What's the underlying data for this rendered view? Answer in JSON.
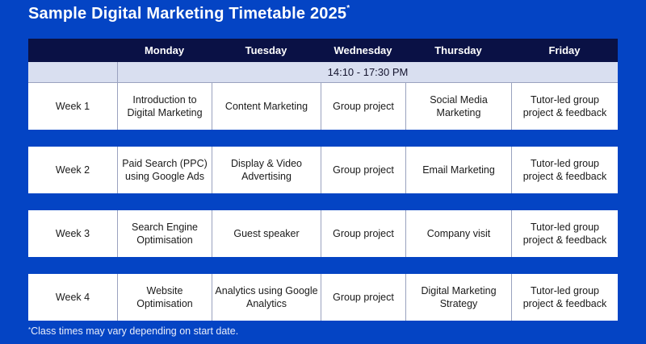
{
  "page": {
    "title": "Sample Digital Marketing Timetable 2025",
    "title_superscript": "*",
    "footnote_marker": "*",
    "footnote_text": "Class times may vary depending on start date."
  },
  "colors": {
    "background_blue": "#0444c4",
    "header_navy": "#0a1145",
    "time_row_lavender": "#d9dff0",
    "row_white": "#ffffff",
    "cell_border": "#9aa2bf",
    "cell_text": "#1a1a1a",
    "title_text": "#ffffff"
  },
  "timetable": {
    "columns": [
      "",
      "Monday",
      "Tuesday",
      "Wednesday",
      "Thursday",
      "Friday"
    ],
    "time_range": "14:10 - 17:30 PM",
    "weeks": [
      {
        "label": "Week 1",
        "cells": [
          "Introduction to Digital Marketing",
          "Content Marketing",
          "Group project",
          "Social Media Marketing",
          "Tutor-led group project & feedback"
        ]
      },
      {
        "label": "Week 2",
        "cells": [
          "Paid Search (PPC) using Google Ads",
          "Display & Video Advertising",
          "Group project",
          "Email Marketing",
          "Tutor-led group project & feedback"
        ]
      },
      {
        "label": "Week 3",
        "cells": [
          "Search Engine Optimisation",
          "Guest speaker",
          "Group project",
          "Company visit",
          "Tutor-led group project & feedback"
        ]
      },
      {
        "label": "Week 4",
        "cells": [
          "Website Optimisation",
          "Analytics using Google Analytics",
          "Group project",
          "Digital Marketing Strategy",
          "Tutor-led group project & feedback"
        ]
      }
    ]
  },
  "chart_data": {
    "type": "table",
    "title": "Sample Digital Marketing Timetable 2025*",
    "columns": [
      "",
      "Monday",
      "Tuesday",
      "Wednesday",
      "Thursday",
      "Friday"
    ],
    "time_range_row": "14:10 - 17:30 PM",
    "rows": [
      [
        "Week 1",
        "Introduction to Digital Marketing",
        "Content Marketing",
        "Group project",
        "Social Media Marketing",
        "Tutor-led group project & feedback"
      ],
      [
        "Week 2",
        "Paid Search (PPC) using Google Ads",
        "Display & Video Advertising",
        "Group project",
        "Email Marketing",
        "Tutor-led group project & feedback"
      ],
      [
        "Week 3",
        "Search Engine Optimisation",
        "Guest speaker",
        "Group project",
        "Company visit",
        "Tutor-led group project & feedback"
      ],
      [
        "Week 4",
        "Website Optimisation",
        "Analytics using Google Analytics",
        "Group project",
        "Digital Marketing Strategy",
        "Tutor-led group project & feedback"
      ]
    ],
    "footnote": "*Class times may vary depending on start date."
  }
}
